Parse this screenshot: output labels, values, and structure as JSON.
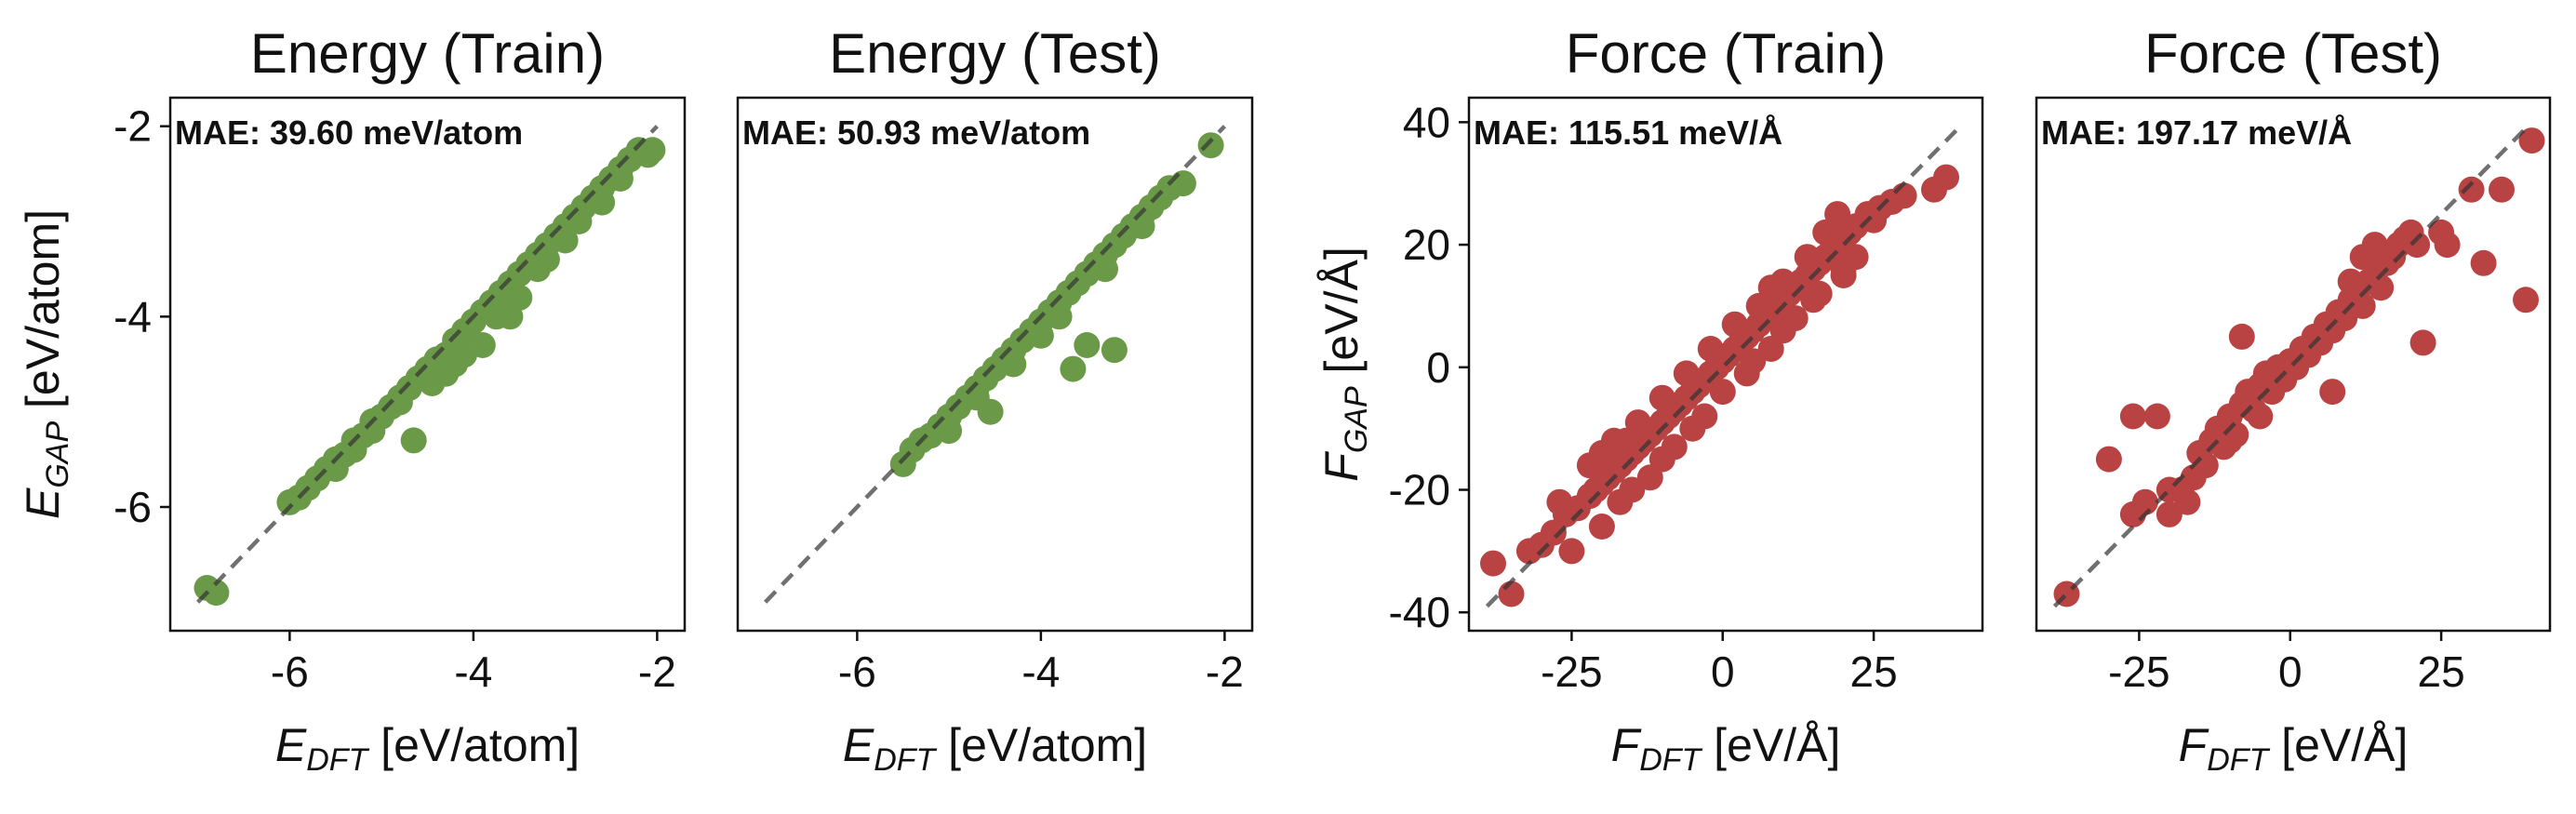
{
  "chart_data": [
    {
      "type": "scatter",
      "title": "Energy (Train)",
      "xlabel": {
        "sym": "E",
        "sub": "DFT",
        "unit": " [eV/atom]"
      },
      "ylabel": {
        "sym": "E",
        "sub": "GAP",
        "unit": " [eV/atom]"
      },
      "annotation": "MAE: 39.60 meV/atom",
      "xlim": [
        -7.3,
        -1.7
      ],
      "ylim": [
        -7.3,
        -1.7
      ],
      "xticks": [
        -6,
        -4,
        -2
      ],
      "yticks": [
        -6,
        -4,
        -2
      ],
      "tick_labels": [
        "-6",
        "-4",
        "-2"
      ],
      "ytick_labels": [
        "-6",
        "-4",
        "-2"
      ],
      "diagonal": [
        -7,
        -2
      ],
      "color": "#6a9a48",
      "points": [
        [
          -6.9,
          -6.85
        ],
        [
          -6.8,
          -6.9
        ],
        [
          -6.0,
          -5.95
        ],
        [
          -5.9,
          -5.9
        ],
        [
          -5.8,
          -5.8
        ],
        [
          -5.7,
          -5.7
        ],
        [
          -5.6,
          -5.6
        ],
        [
          -5.5,
          -5.5
        ],
        [
          -5.4,
          -5.45
        ],
        [
          -5.3,
          -5.3
        ],
        [
          -5.2,
          -5.25
        ],
        [
          -5.1,
          -5.1
        ],
        [
          -5.0,
          -5.05
        ],
        [
          -4.9,
          -4.95
        ],
        [
          -4.8,
          -4.85
        ],
        [
          -4.7,
          -4.75
        ],
        [
          -4.6,
          -4.65
        ],
        [
          -4.5,
          -4.55
        ],
        [
          -4.4,
          -4.45
        ],
        [
          -4.3,
          -4.4
        ],
        [
          -4.2,
          -4.25
        ],
        [
          -4.1,
          -4.15
        ],
        [
          -4.0,
          -4.05
        ],
        [
          -3.9,
          -3.95
        ],
        [
          -3.8,
          -3.85
        ],
        [
          -3.7,
          -3.75
        ],
        [
          -3.6,
          -3.65
        ],
        [
          -3.5,
          -3.55
        ],
        [
          -3.4,
          -3.45
        ],
        [
          -3.3,
          -3.35
        ],
        [
          -3.2,
          -3.25
        ],
        [
          -3.1,
          -3.15
        ],
        [
          -3.0,
          -3.05
        ],
        [
          -2.9,
          -2.95
        ],
        [
          -2.8,
          -2.85
        ],
        [
          -2.7,
          -2.75
        ],
        [
          -2.6,
          -2.65
        ],
        [
          -2.5,
          -2.55
        ],
        [
          -2.4,
          -2.45
        ],
        [
          -2.3,
          -2.35
        ],
        [
          -2.2,
          -2.25
        ],
        [
          -2.1,
          -2.3
        ],
        [
          -2.05,
          -2.25
        ],
        [
          -4.65,
          -5.3
        ],
        [
          -4.3,
          -4.6
        ],
        [
          -4.2,
          -4.5
        ],
        [
          -3.75,
          -4.0
        ],
        [
          -3.6,
          -4.0
        ],
        [
          -3.5,
          -3.8
        ],
        [
          -3.9,
          -4.3
        ],
        [
          -4.1,
          -4.4
        ],
        [
          -5.1,
          -5.2
        ],
        [
          -5.5,
          -5.6
        ],
        [
          -3.3,
          -3.5
        ],
        [
          -3.0,
          -3.2
        ],
        [
          -2.85,
          -3.0
        ],
        [
          -2.6,
          -2.8
        ],
        [
          -2.4,
          -2.55
        ],
        [
          -4.8,
          -4.9
        ],
        [
          -5.3,
          -5.4
        ],
        [
          -3.2,
          -3.4
        ],
        [
          -3.65,
          -3.9
        ],
        [
          -4.45,
          -4.7
        ]
      ]
    },
    {
      "type": "scatter",
      "title": "Energy (Test)",
      "xlabel": {
        "sym": "E",
        "sub": "DFT",
        "unit": " [eV/atom]"
      },
      "ylabel": null,
      "annotation": "MAE: 50.93 meV/atom",
      "xlim": [
        -7.3,
        -1.7
      ],
      "ylim": [
        -7.3,
        -1.7
      ],
      "xticks": [
        -6,
        -4,
        -2
      ],
      "yticks": [],
      "tick_labels": [
        "-6",
        "-4",
        "-2"
      ],
      "ytick_labels": [],
      "diagonal": [
        -7,
        -2
      ],
      "color": "#6a9a48",
      "points": [
        [
          -5.5,
          -5.55
        ],
        [
          -5.4,
          -5.4
        ],
        [
          -5.3,
          -5.3
        ],
        [
          -5.2,
          -5.25
        ],
        [
          -5.1,
          -5.15
        ],
        [
          -5.0,
          -5.05
        ],
        [
          -4.9,
          -4.95
        ],
        [
          -4.8,
          -4.85
        ],
        [
          -4.7,
          -4.75
        ],
        [
          -4.6,
          -4.65
        ],
        [
          -4.5,
          -4.55
        ],
        [
          -4.4,
          -4.45
        ],
        [
          -4.3,
          -4.35
        ],
        [
          -4.2,
          -4.25
        ],
        [
          -4.1,
          -4.15
        ],
        [
          -4.0,
          -4.05
        ],
        [
          -3.9,
          -3.95
        ],
        [
          -3.8,
          -3.85
        ],
        [
          -3.7,
          -3.75
        ],
        [
          -3.6,
          -3.65
        ],
        [
          -3.5,
          -3.55
        ],
        [
          -3.4,
          -3.45
        ],
        [
          -3.3,
          -3.35
        ],
        [
          -3.2,
          -3.25
        ],
        [
          -3.1,
          -3.15
        ],
        [
          -3.0,
          -3.05
        ],
        [
          -2.9,
          -2.95
        ],
        [
          -2.8,
          -2.85
        ],
        [
          -2.7,
          -2.75
        ],
        [
          -2.6,
          -2.65
        ],
        [
          -2.45,
          -2.6
        ],
        [
          -2.15,
          -2.2
        ],
        [
          -4.55,
          -5.0
        ],
        [
          -3.65,
          -4.55
        ],
        [
          -3.5,
          -4.3
        ],
        [
          -3.2,
          -4.35
        ],
        [
          -4.0,
          -4.2
        ],
        [
          -4.3,
          -4.5
        ],
        [
          -4.7,
          -4.85
        ],
        [
          -5.0,
          -5.2
        ],
        [
          -3.8,
          -4.0
        ],
        [
          -3.3,
          -3.5
        ],
        [
          -2.9,
          -3.05
        ]
      ]
    },
    {
      "type": "scatter",
      "title": "Force (Train)",
      "xlabel": {
        "sym": "F",
        "sub": "DFT",
        "unit": " [eV/Å]"
      },
      "ylabel": {
        "sym": "F",
        "sub": "GAP",
        "unit": " [eV/Å]"
      },
      "annotation": "MAE: 115.51 meV/Å",
      "xlim": [
        -42,
        43
      ],
      "ylim": [
        -43,
        44
      ],
      "xticks": [
        -25,
        0,
        25
      ],
      "yticks": [
        -40,
        -20,
        0,
        20,
        40
      ],
      "tick_labels": [
        "-25",
        "0",
        "25"
      ],
      "ytick_labels": [
        "-40",
        "-20",
        "0",
        "20",
        "40"
      ],
      "diagonal": [
        -39,
        39
      ],
      "color": "#b94343",
      "points": [
        [
          -38,
          -32
        ],
        [
          -35,
          -37
        ],
        [
          -32,
          -30
        ],
        [
          -30,
          -29
        ],
        [
          -28,
          -27
        ],
        [
          -26,
          -24
        ],
        [
          -24,
          -23
        ],
        [
          -22,
          -21
        ],
        [
          -20,
          -19
        ],
        [
          -19,
          -18
        ],
        [
          -18,
          -17
        ],
        [
          -17,
          -16
        ],
        [
          -16,
          -15
        ],
        [
          -15,
          -14
        ],
        [
          -14,
          -13
        ],
        [
          -13,
          -12
        ],
        [
          -12,
          -11
        ],
        [
          -11,
          -10
        ],
        [
          -10,
          -9
        ],
        [
          -9,
          -8
        ],
        [
          -8,
          -7
        ],
        [
          -7,
          -6
        ],
        [
          -6,
          -5
        ],
        [
          -5,
          -4
        ],
        [
          -4,
          -3
        ],
        [
          -3,
          -2
        ],
        [
          -2,
          -1
        ],
        [
          -1,
          0
        ],
        [
          0,
          1
        ],
        [
          1,
          2
        ],
        [
          2,
          3
        ],
        [
          3,
          4
        ],
        [
          4,
          5
        ],
        [
          5,
          6
        ],
        [
          6,
          7
        ],
        [
          7,
          8
        ],
        [
          8,
          9
        ],
        [
          9,
          10
        ],
        [
          10,
          11
        ],
        [
          11,
          12
        ],
        [
          12,
          13
        ],
        [
          13,
          14
        ],
        [
          14,
          15
        ],
        [
          15,
          16
        ],
        [
          16,
          17
        ],
        [
          17,
          18
        ],
        [
          18,
          19
        ],
        [
          19,
          20
        ],
        [
          20,
          21
        ],
        [
          21,
          22
        ],
        [
          22,
          23
        ],
        [
          24,
          25
        ],
        [
          26,
          26
        ],
        [
          28,
          27
        ],
        [
          30,
          28
        ],
        [
          35,
          29
        ],
        [
          37,
          31
        ],
        [
          -20,
          -14
        ],
        [
          -18,
          -12
        ],
        [
          -22,
          -16
        ],
        [
          -14,
          -9
        ],
        [
          -10,
          -5
        ],
        [
          -6,
          -1
        ],
        [
          -2,
          3
        ],
        [
          2,
          7
        ],
        [
          6,
          10
        ],
        [
          10,
          14
        ],
        [
          14,
          18
        ],
        [
          18,
          22
        ],
        [
          -15,
          -20
        ],
        [
          -10,
          -15
        ],
        [
          -5,
          -10
        ],
        [
          0,
          -4
        ],
        [
          5,
          1
        ],
        [
          10,
          6
        ],
        [
          15,
          11
        ],
        [
          20,
          15
        ],
        [
          22,
          18
        ],
        [
          -25,
          -30
        ],
        [
          -20,
          -26
        ],
        [
          -17,
          -22
        ],
        [
          -12,
          -18
        ],
        [
          -8,
          -13
        ],
        [
          -3,
          -8
        ],
        [
          4,
          -1
        ],
        [
          8,
          3
        ],
        [
          12,
          8
        ],
        [
          16,
          12
        ],
        [
          20,
          16
        ],
        [
          -27,
          -22
        ],
        [
          -21,
          -20
        ],
        [
          -16,
          -12
        ],
        [
          17,
          22
        ],
        [
          19,
          25
        ],
        [
          25,
          24
        ],
        [
          8,
          13
        ]
      ]
    },
    {
      "type": "scatter",
      "title": "Force (Test)",
      "xlabel": {
        "sym": "F",
        "sub": "DFT",
        "unit": " [eV/Å]"
      },
      "ylabel": null,
      "annotation": "MAE: 197.17 meV/Å",
      "xlim": [
        -42,
        43
      ],
      "ylim": [
        -43,
        44
      ],
      "xticks": [
        -25,
        0,
        25
      ],
      "yticks": [],
      "tick_labels": [
        "-25",
        "0",
        "25"
      ],
      "ytick_labels": [],
      "diagonal": [
        -39,
        39
      ],
      "color": "#b94343",
      "points": [
        [
          -37,
          -37
        ],
        [
          -30,
          -15
        ],
        [
          -26,
          -8
        ],
        [
          -22,
          -8
        ],
        [
          -20,
          -24
        ],
        [
          -18,
          -20
        ],
        [
          -17,
          -22
        ],
        [
          -16,
          -18
        ],
        [
          -15,
          -14
        ],
        [
          -14,
          -16
        ],
        [
          -13,
          -12
        ],
        [
          -12,
          -10
        ],
        [
          -11,
          -13
        ],
        [
          -10,
          -8
        ],
        [
          -9,
          -11
        ],
        [
          -8,
          5
        ],
        [
          -8,
          -6
        ],
        [
          -7,
          -4
        ],
        [
          -6,
          -7
        ],
        [
          -5,
          -3
        ],
        [
          -4,
          -1
        ],
        [
          -3,
          -4
        ],
        [
          -2,
          0
        ],
        [
          -1,
          -2
        ],
        [
          0,
          1
        ],
        [
          1,
          0
        ],
        [
          2,
          3
        ],
        [
          3,
          2
        ],
        [
          4,
          5
        ],
        [
          5,
          4
        ],
        [
          6,
          7
        ],
        [
          7,
          6
        ],
        [
          8,
          9
        ],
        [
          9,
          8
        ],
        [
          10,
          11
        ],
        [
          11,
          12
        ],
        [
          12,
          10
        ],
        [
          13,
          14
        ],
        [
          14,
          15
        ],
        [
          15,
          13
        ],
        [
          16,
          17
        ],
        [
          17,
          18
        ],
        [
          18,
          20
        ],
        [
          19,
          21
        ],
        [
          20,
          22
        ],
        [
          21,
          20
        ],
        [
          22,
          4
        ],
        [
          25,
          22
        ],
        [
          26,
          20
        ],
        [
          30,
          29
        ],
        [
          32,
          17
        ],
        [
          35,
          29
        ],
        [
          39,
          11
        ],
        [
          40,
          37
        ],
        [
          7,
          -4
        ],
        [
          -20,
          -20
        ],
        [
          -24,
          -22
        ],
        [
          -26,
          -24
        ],
        [
          14,
          20
        ],
        [
          12,
          18
        ],
        [
          10,
          14
        ],
        [
          -5,
          -8
        ],
        [
          -10,
          -12
        ]
      ]
    }
  ]
}
